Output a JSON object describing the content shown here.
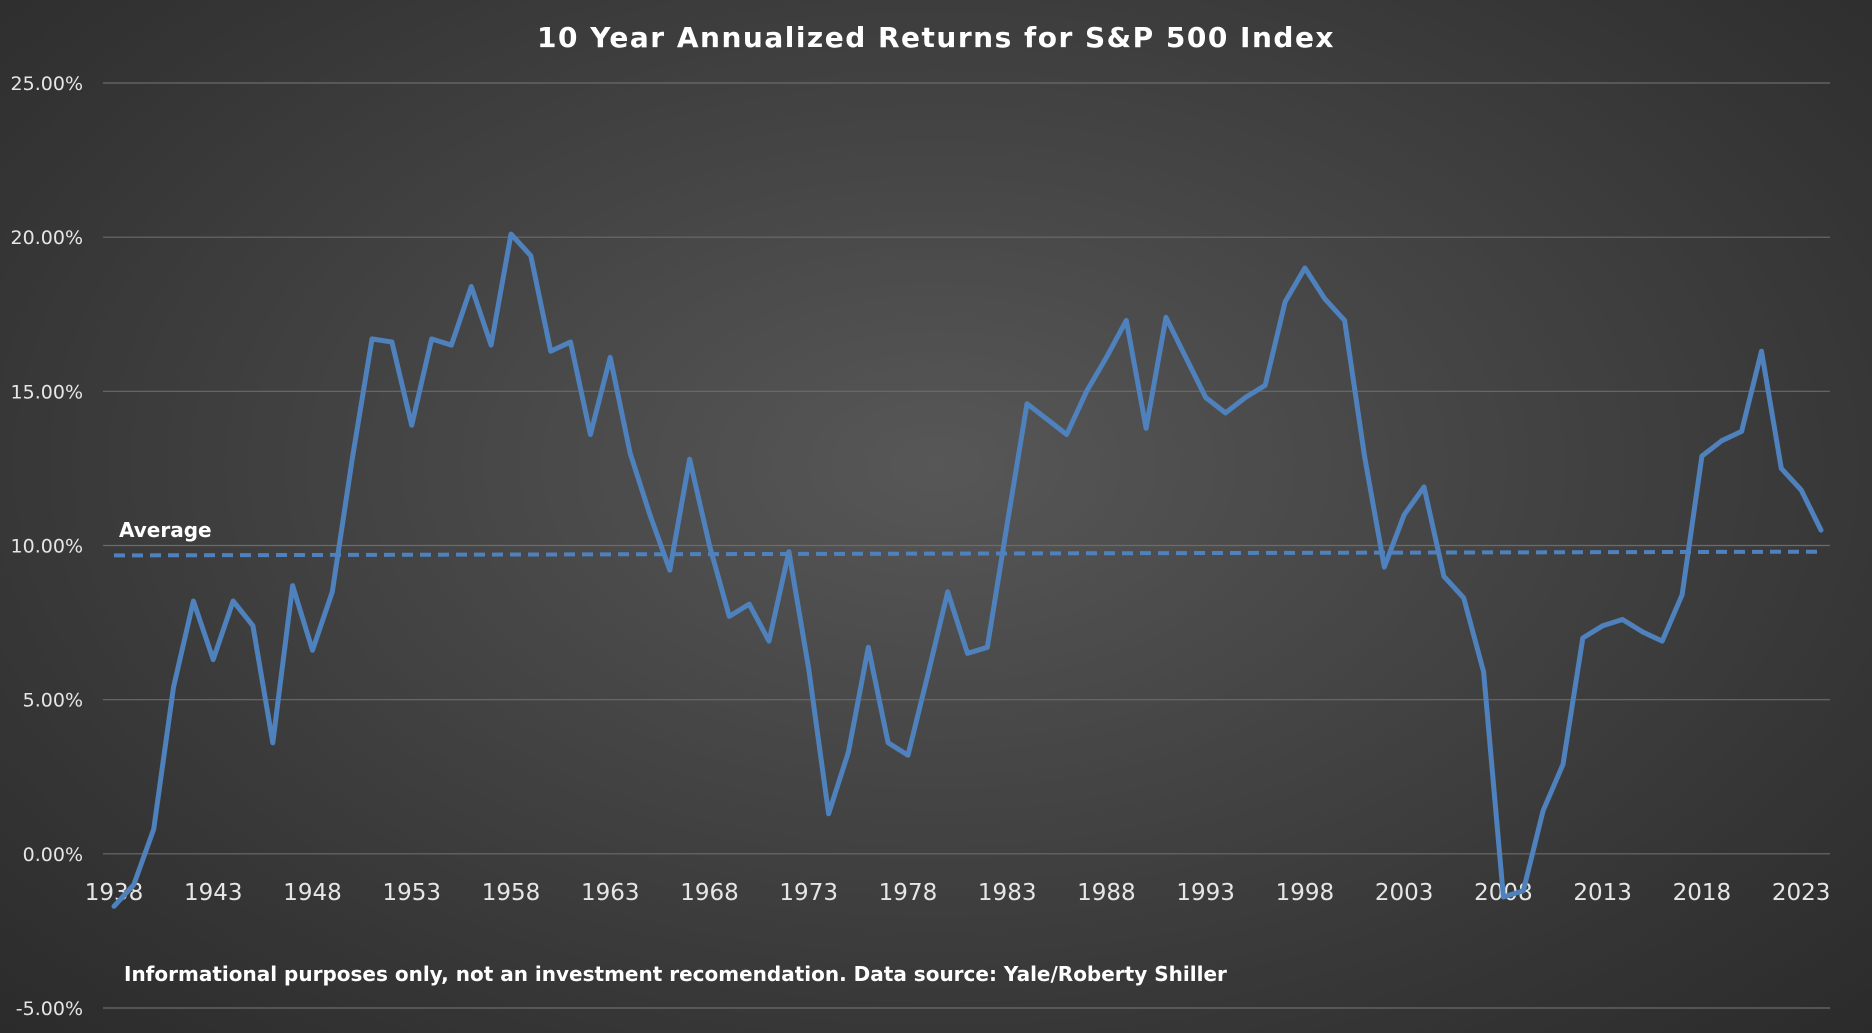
{
  "chart_data": {
    "type": "line",
    "title": "10 Year Annualized Returns for S&P 500 Index",
    "xlabel": "",
    "ylabel": "",
    "ylim": [
      -5,
      25
    ],
    "yticks": [
      -5,
      0,
      5,
      10,
      15,
      20,
      25
    ],
    "ytick_labels": [
      "-5.00%",
      "0.00%",
      "5.00%",
      "10.00%",
      "15.00%",
      "20.00%",
      "25.00%"
    ],
    "xlim": [
      1938,
      2024
    ],
    "xticks": [
      1938,
      1943,
      1948,
      1953,
      1958,
      1963,
      1968,
      1973,
      1978,
      1983,
      1988,
      1993,
      1998,
      2003,
      2008,
      2013,
      2018,
      2023
    ],
    "xtick_labels": [
      "1938",
      "1943",
      "1948",
      "1953",
      "1958",
      "1963",
      "1968",
      "1973",
      "1978",
      "1983",
      "1988",
      "1993",
      "1998",
      "2003",
      "2008",
      "2013",
      "2018",
      "2023"
    ],
    "grid": true,
    "legend": "none",
    "series": [
      {
        "name": "10 Year Annualized Return",
        "color": "#4f81bd",
        "x": [
          1938,
          1939,
          1940,
          1941,
          1942,
          1943,
          1944,
          1945,
          1946,
          1947,
          1948,
          1949,
          1950,
          1951,
          1952,
          1953,
          1954,
          1955,
          1956,
          1957,
          1958,
          1959,
          1960,
          1961,
          1962,
          1963,
          1964,
          1965,
          1966,
          1967,
          1968,
          1969,
          1970,
          1971,
          1972,
          1973,
          1974,
          1975,
          1976,
          1977,
          1978,
          1979,
          1980,
          1981,
          1982,
          1983,
          1984,
          1985,
          1986,
          1987,
          1988,
          1989,
          1990,
          1991,
          1992,
          1993,
          1994,
          1995,
          1996,
          1997,
          1998,
          1999,
          2000,
          2001,
          2002,
          2003,
          2004,
          2005,
          2006,
          2007,
          2008,
          2009,
          2010,
          2011,
          2012,
          2013,
          2014,
          2015,
          2016,
          2017,
          2018,
          2019,
          2020,
          2021,
          2022,
          2023,
          2024
        ],
        "values": [
          -1.7,
          -1.0,
          0.8,
          5.4,
          8.2,
          6.3,
          8.2,
          7.4,
          3.6,
          8.7,
          6.6,
          8.5,
          12.8,
          16.7,
          16.6,
          13.9,
          16.7,
          16.5,
          18.4,
          16.5,
          20.1,
          19.4,
          16.3,
          16.6,
          13.6,
          16.1,
          13.0,
          11.0,
          9.2,
          12.8,
          10.0,
          7.7,
          8.1,
          6.9,
          9.8,
          6.0,
          1.3,
          3.3,
          6.7,
          3.6,
          3.2,
          5.8,
          8.5,
          6.5,
          6.7,
          10.7,
          14.6,
          14.1,
          13.6,
          15.0,
          16.1,
          17.3,
          13.8,
          17.4,
          16.1,
          14.8,
          14.3,
          14.8,
          15.2,
          17.9,
          19.0,
          18.0,
          17.3,
          12.9,
          9.3,
          11.0,
          11.9,
          9.0,
          8.3,
          5.9,
          -1.4,
          -1.2,
          1.4,
          2.9,
          7.0,
          7.4,
          7.6,
          7.2,
          6.9,
          8.4,
          12.9,
          13.4,
          13.7,
          16.3,
          12.5,
          11.8,
          10.5
        ]
      },
      {
        "name": "Average",
        "color": "#4f81bd",
        "x": [
          1938,
          2024
        ],
        "values": [
          9.68,
          9.8
        ]
      }
    ],
    "annotations": {
      "average_label": "Average",
      "note": "Informational purposes only, not an investment recomendation. Data source: Yale/Roberty Shiller"
    }
  }
}
